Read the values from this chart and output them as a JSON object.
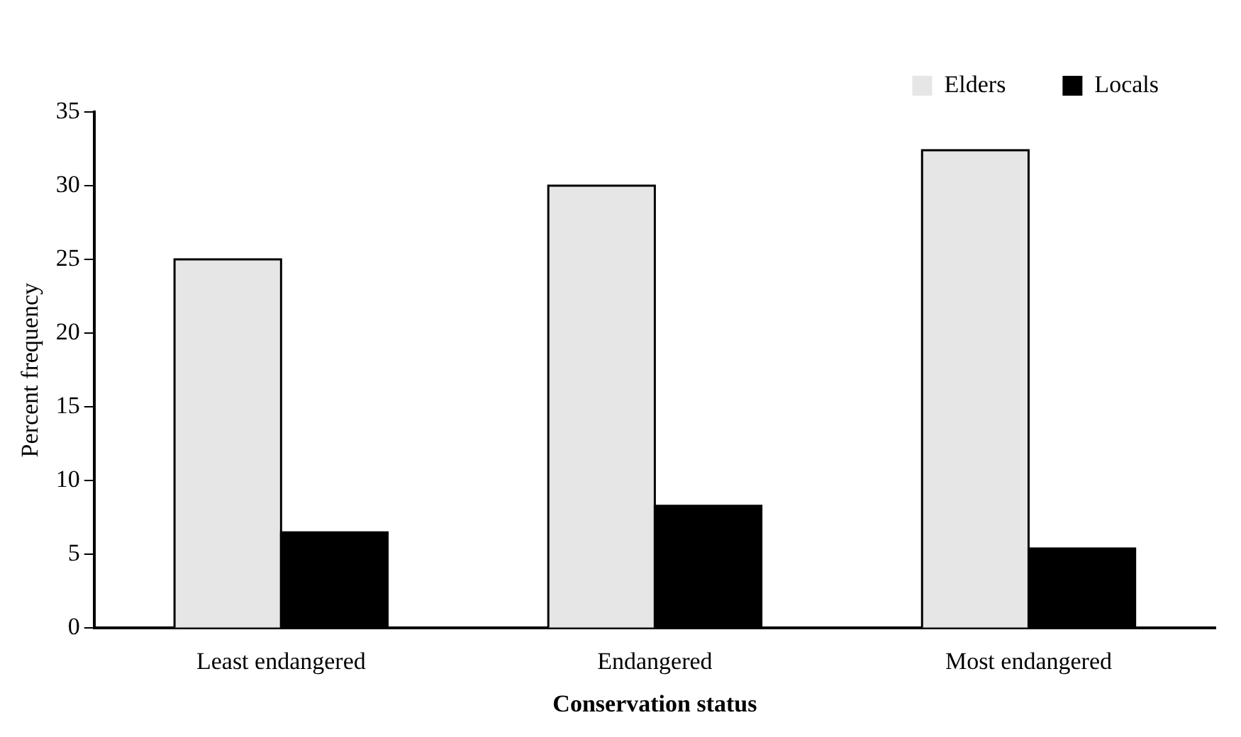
{
  "chart_data": {
    "type": "bar",
    "xlabel": "Conservation status",
    "ylabel": "Percent frequency",
    "categories": [
      "Least endangered",
      "Endangered",
      "Most endangered"
    ],
    "series": [
      {
        "name": "Elders",
        "color": "#e6e6e6",
        "values": [
          25,
          30,
          32.4
        ]
      },
      {
        "name": "Locals",
        "color": "#000000",
        "values": [
          6.5,
          8.3,
          5.4
        ]
      }
    ],
    "ylim": [
      0,
      35
    ],
    "yticks": [
      0,
      5,
      10,
      15,
      20,
      25,
      30,
      35
    ],
    "grid": false,
    "legend": "top right"
  }
}
